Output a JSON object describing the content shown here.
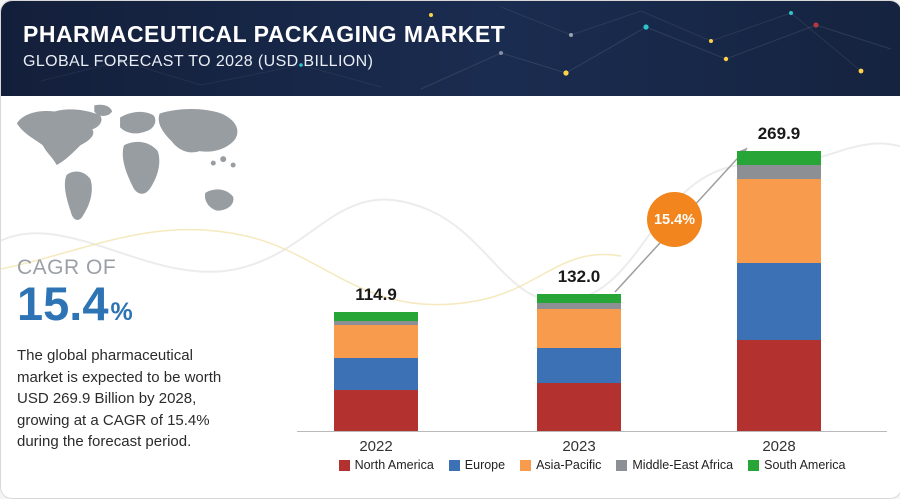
{
  "header": {
    "title": "PHARMACEUTICAL PACKAGING MARKET",
    "subtitle": "GLOBAL FORECAST TO 2028 (USD BILLION)"
  },
  "cagr": {
    "label": "CAGR OF",
    "value": "15.4",
    "unit": "%",
    "description": "The global pharmaceutical market is expected to be worth USD 269.9 Billion by 2028, growing at a CAGR of 15.4% during the forecast period."
  },
  "chart_data": {
    "type": "bar",
    "stacked": true,
    "title": "Pharmaceutical Packaging Market, Global Forecast to 2028 (USD Billion)",
    "categories": [
      "2022",
      "2023",
      "2028"
    ],
    "totals": [
      114.9,
      132.0,
      269.9
    ],
    "total_labels": [
      "114.9",
      "132.0",
      "269.9"
    ],
    "series": [
      {
        "name": "North America",
        "color": "#b3312f",
        "values": [
          40.0,
          46.0,
          88.0
        ]
      },
      {
        "name": "Europe",
        "color": "#3c72b5",
        "values": [
          30.0,
          34.0,
          74.0
        ]
      },
      {
        "name": "Asia-Pacific",
        "color": "#f89b4d",
        "values": [
          32.0,
          38.0,
          81.0
        ]
      },
      {
        "name": "Middle-East Africa",
        "color": "#8c8f93",
        "values": [
          4.0,
          5.0,
          13.0
        ]
      },
      {
        "name": "South America",
        "color": "#27a537",
        "values": [
          8.9,
          9.0,
          13.9
        ]
      }
    ],
    "badge_label": "15.4%",
    "ylim": [
      0,
      290
    ],
    "grid": false,
    "legend_position": "bottom"
  }
}
